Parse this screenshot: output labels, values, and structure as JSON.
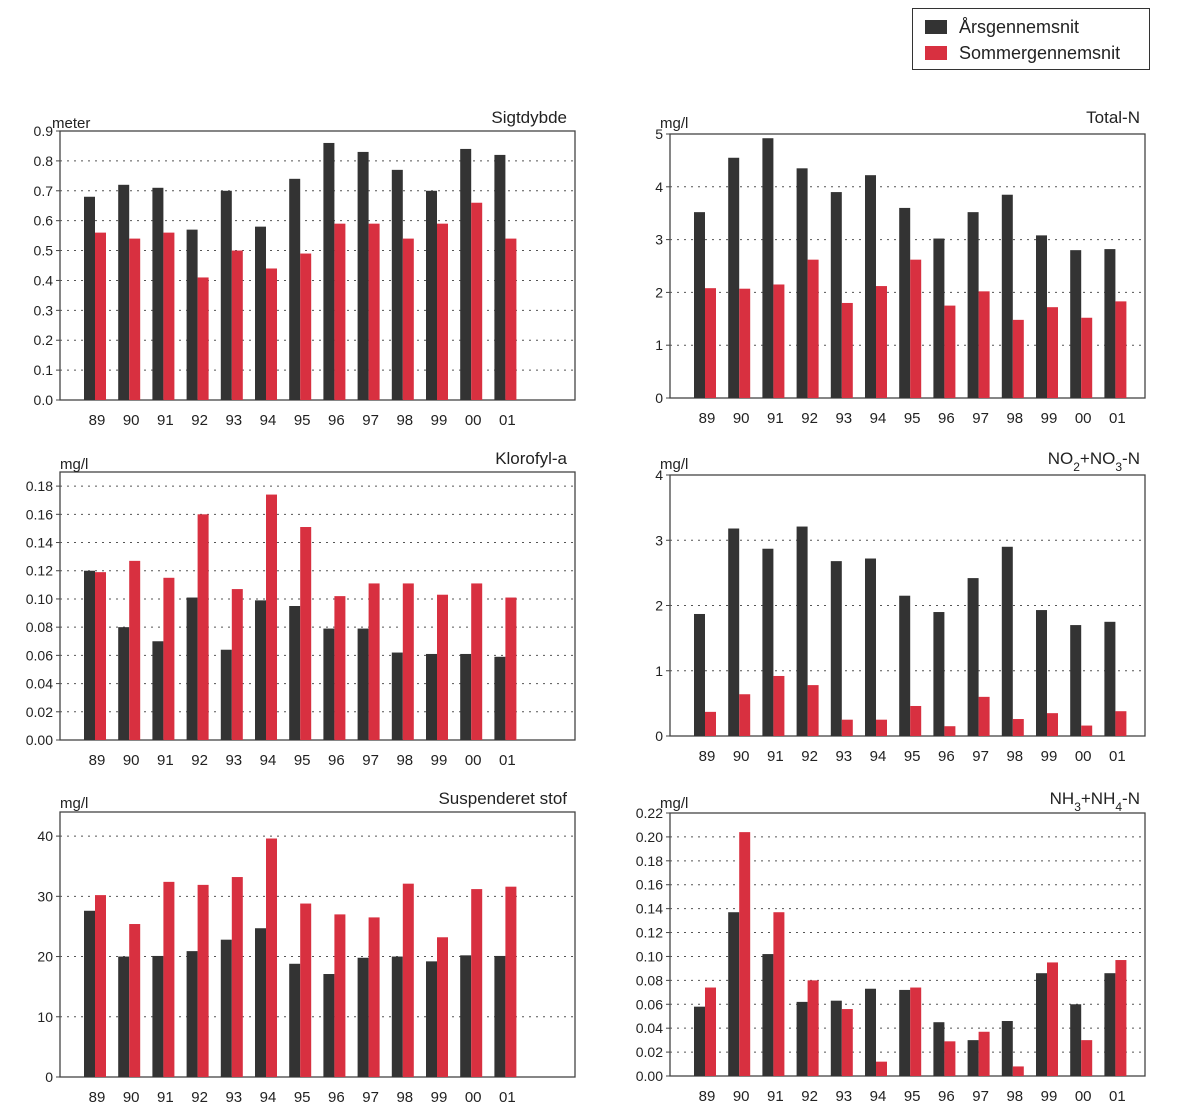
{
  "legend": {
    "annual_label": "Årsgennemsnit",
    "summer_label": "Sommergennemsnit"
  },
  "colors": {
    "annual": "#333333",
    "summer": "#d83040"
  },
  "chart_data": [
    {
      "type": "bar",
      "title": "Sigtdybde",
      "ylabel": "meter",
      "categories": [
        "89",
        "90",
        "91",
        "92",
        "93",
        "94",
        "95",
        "96",
        "97",
        "98",
        "99",
        "00",
        "01"
      ],
      "ylim": [
        0,
        0.9
      ],
      "yticks": [
        0,
        0.1,
        0.2,
        0.3,
        0.4,
        0.5,
        0.6,
        0.7,
        0.8,
        0.9
      ],
      "ytick_labels": [
        "0.0",
        "0.1",
        "0.2",
        "0.3",
        "0.4",
        "0.5",
        "0.6",
        "0.7",
        "0.8",
        "0.9"
      ],
      "series": [
        {
          "name": "Årsgennemsnit",
          "values": [
            0.68,
            0.72,
            0.71,
            0.57,
            0.7,
            0.58,
            0.74,
            0.86,
            0.83,
            0.77,
            0.7,
            0.84,
            0.82
          ]
        },
        {
          "name": "Sommergennemsnit",
          "values": [
            0.56,
            0.54,
            0.56,
            0.41,
            0.5,
            0.44,
            0.49,
            0.59,
            0.59,
            0.54,
            0.59,
            0.66,
            0.54
          ]
        }
      ]
    },
    {
      "type": "bar",
      "title": "Total-N",
      "ylabel": "mg/l",
      "categories": [
        "89",
        "90",
        "91",
        "92",
        "93",
        "94",
        "95",
        "96",
        "97",
        "98",
        "99",
        "00",
        "01"
      ],
      "ylim": [
        0,
        5
      ],
      "yticks": [
        0,
        1,
        2,
        3,
        4,
        5
      ],
      "ytick_labels": [
        "0",
        "1",
        "2",
        "3",
        "4",
        "5"
      ],
      "series": [
        {
          "name": "Årsgennemsnit",
          "values": [
            3.52,
            4.55,
            4.92,
            4.35,
            3.9,
            4.22,
            3.6,
            3.02,
            3.52,
            3.85,
            3.08,
            2.8,
            2.82
          ]
        },
        {
          "name": "Sommergennemsnit",
          "values": [
            2.08,
            2.07,
            2.15,
            2.62,
            1.8,
            2.12,
            2.62,
            1.75,
            2.02,
            1.48,
            1.72,
            1.52,
            1.83
          ]
        }
      ]
    },
    {
      "type": "bar",
      "title": "Klorofyl-a",
      "ylabel": "mg/l",
      "categories": [
        "89",
        "90",
        "91",
        "92",
        "93",
        "94",
        "95",
        "96",
        "97",
        "98",
        "99",
        "00",
        "01"
      ],
      "ylim": [
        0,
        0.19
      ],
      "yticks": [
        0,
        0.02,
        0.04,
        0.06,
        0.08,
        0.1,
        0.12,
        0.14,
        0.16,
        0.18
      ],
      "ytick_labels": [
        "0.00",
        "0.02",
        "0.04",
        "0.06",
        "0.08",
        "0.10",
        "0.12",
        "0.14",
        "0.16",
        "0.18"
      ],
      "series": [
        {
          "name": "Årsgennemsnit",
          "values": [
            0.12,
            0.08,
            0.07,
            0.101,
            0.064,
            0.099,
            0.095,
            0.079,
            0.079,
            0.062,
            0.061,
            0.061,
            0.059
          ]
        },
        {
          "name": "Sommergennemsnit",
          "values": [
            0.119,
            0.127,
            0.115,
            0.16,
            0.107,
            0.174,
            0.151,
            0.102,
            0.111,
            0.111,
            0.103,
            0.111,
            0.101
          ]
        }
      ]
    },
    {
      "type": "bar",
      "title": "NO2+NO3-N",
      "ylabel": "mg/l",
      "categories": [
        "89",
        "90",
        "91",
        "92",
        "93",
        "94",
        "95",
        "96",
        "97",
        "98",
        "99",
        "00",
        "01"
      ],
      "ylim": [
        0,
        4
      ],
      "yticks": [
        0,
        1,
        2,
        3,
        4
      ],
      "ytick_labels": [
        "0",
        "1",
        "2",
        "3",
        "4"
      ],
      "series": [
        {
          "name": "Årsgennemsnit",
          "values": [
            1.87,
            3.18,
            2.87,
            3.21,
            2.68,
            2.72,
            2.15,
            1.9,
            2.42,
            2.9,
            1.93,
            1.7,
            1.75
          ]
        },
        {
          "name": "Sommergennemsnit",
          "values": [
            0.37,
            0.64,
            0.92,
            0.78,
            0.25,
            0.25,
            0.46,
            0.15,
            0.6,
            0.26,
            0.35,
            0.16,
            0.38
          ]
        }
      ]
    },
    {
      "type": "bar",
      "title": "Suspenderet stof",
      "ylabel": "mg/l",
      "categories": [
        "89",
        "90",
        "91",
        "92",
        "93",
        "94",
        "95",
        "96",
        "97",
        "98",
        "99",
        "00",
        "01"
      ],
      "ylim": [
        0,
        44
      ],
      "yticks": [
        0,
        10,
        20,
        30,
        40
      ],
      "ytick_labels": [
        "0",
        "10",
        "20",
        "30",
        "40"
      ],
      "series": [
        {
          "name": "Årsgennemsnit",
          "values": [
            27.6,
            20.0,
            20.1,
            20.9,
            22.8,
            24.7,
            18.8,
            17.1,
            19.8,
            20.0,
            19.2,
            20.2,
            20.1
          ]
        },
        {
          "name": "Sommergennemsnit",
          "values": [
            30.2,
            25.4,
            32.4,
            31.9,
            33.2,
            39.6,
            28.8,
            27.0,
            26.5,
            32.1,
            23.2,
            31.2,
            31.6
          ]
        }
      ]
    },
    {
      "type": "bar",
      "title": "NH3+NH4-N",
      "ylabel": "mg/l",
      "categories": [
        "89",
        "90",
        "91",
        "92",
        "93",
        "94",
        "95",
        "96",
        "97",
        "98",
        "99",
        "00",
        "01"
      ],
      "ylim": [
        0,
        0.22
      ],
      "yticks": [
        0,
        0.02,
        0.04,
        0.06,
        0.08,
        0.1,
        0.12,
        0.14,
        0.16,
        0.18,
        0.2,
        0.22
      ],
      "ytick_labels": [
        "0.00",
        "0.02",
        "0.04",
        "0.06",
        "0.08",
        "0.10",
        "0.12",
        "0.14",
        "0.16",
        "0.18",
        "0.20",
        "0.22"
      ],
      "series": [
        {
          "name": "Årsgennemsnit",
          "values": [
            0.058,
            0.137,
            0.102,
            0.062,
            0.063,
            0.073,
            0.072,
            0.045,
            0.03,
            0.046,
            0.086,
            0.06,
            0.086
          ]
        },
        {
          "name": "Sommergennemsnit",
          "values": [
            0.074,
            0.204,
            0.137,
            0.08,
            0.056,
            0.012,
            0.074,
            0.029,
            0.037,
            0.008,
            0.095,
            0.03,
            0.097
          ]
        }
      ]
    }
  ]
}
